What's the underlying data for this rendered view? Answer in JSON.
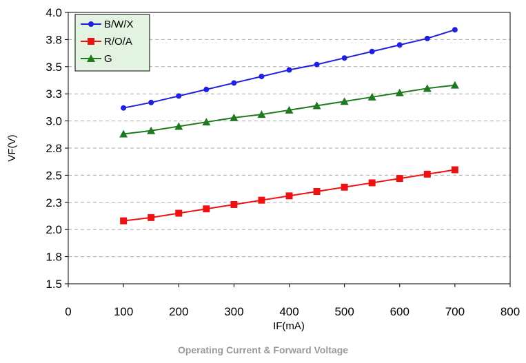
{
  "caption": "Operating Current & Forward Voltage",
  "colors": {
    "blue": "#1f1fe0",
    "red": "#ee1111",
    "green": "#1f7a1f",
    "grid": "#aaaaaa",
    "legend_bg": "#e2f3e2"
  },
  "chart_data": {
    "type": "line",
    "xlabel": "IF(mA)",
    "ylabel": "VF(V)",
    "xlim": [
      0,
      800
    ],
    "ylim": [
      1.5,
      4.0
    ],
    "x_ticks": [
      0,
      100,
      200,
      300,
      400,
      500,
      600,
      700,
      800
    ],
    "x_tick_labels": [
      "0",
      "100",
      "200",
      "300",
      "400",
      "500",
      "600",
      "700",
      "800"
    ],
    "y_ticks": [
      1.5,
      1.75,
      2.0,
      2.25,
      2.5,
      2.75,
      3.0,
      3.25,
      3.5,
      3.75,
      4.0
    ],
    "y_tick_labels": [
      "1.5",
      "1.8",
      "2.0",
      "2.3",
      "2.5",
      "2.8",
      "3.0",
      "3.3",
      "3.5",
      "3.8",
      "4.0"
    ],
    "grid": true,
    "legend_position": "top-left",
    "x": [
      100,
      150,
      200,
      250,
      300,
      350,
      400,
      450,
      500,
      550,
      600,
      650,
      700
    ],
    "series": [
      {
        "name": "B/W/X",
        "marker": "circle",
        "color": "#1f1fe0",
        "values": [
          3.12,
          3.17,
          3.23,
          3.29,
          3.35,
          3.41,
          3.47,
          3.52,
          3.58,
          3.64,
          3.7,
          3.76,
          3.84
        ]
      },
      {
        "name": "R/O/A",
        "marker": "square",
        "color": "#ee1111",
        "values": [
          2.08,
          2.11,
          2.15,
          2.19,
          2.23,
          2.27,
          2.31,
          2.35,
          2.39,
          2.43,
          2.47,
          2.51,
          2.55
        ]
      },
      {
        "name": "G",
        "marker": "triangle",
        "color": "#1f7a1f",
        "values": [
          2.88,
          2.91,
          2.95,
          2.99,
          3.03,
          3.06,
          3.1,
          3.14,
          3.18,
          3.22,
          3.26,
          3.3,
          3.33
        ]
      }
    ]
  }
}
